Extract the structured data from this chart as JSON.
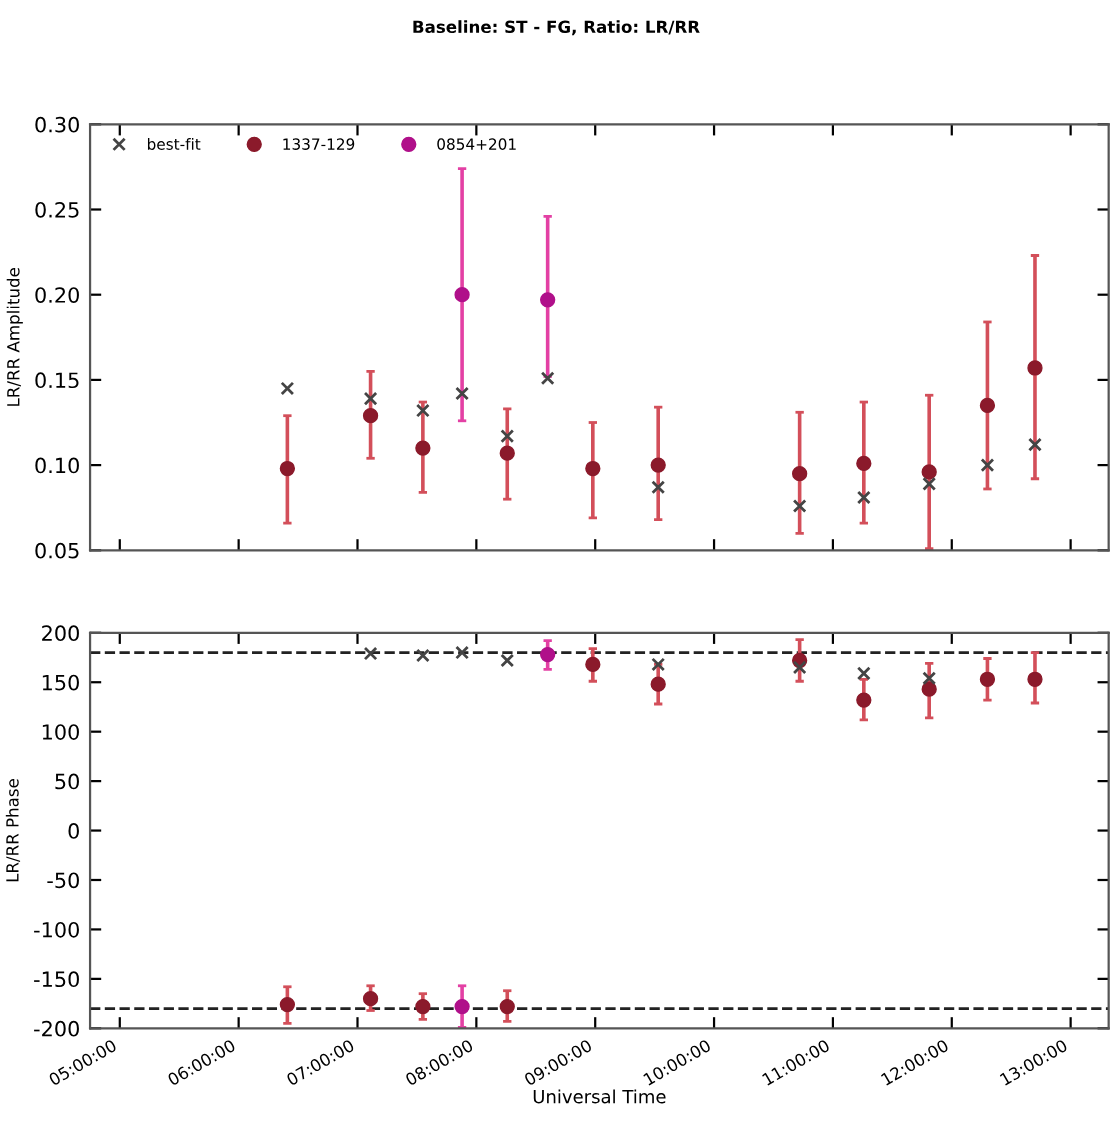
{
  "chart_data": [
    {
      "type": "scatter",
      "title": "Baseline: ST - FG, Ratio: LR/RR",
      "ylabel": "LR/RR Amplitude",
      "xlim": [
        4.75,
        13.32
      ],
      "ylim": [
        0.05,
        0.3
      ],
      "yticks": [
        {
          "value": 0.05,
          "label": "0.05"
        },
        {
          "value": 0.1,
          "label": "0.10"
        },
        {
          "value": 0.15,
          "label": "0.15"
        },
        {
          "value": 0.2,
          "label": "0.20"
        },
        {
          "value": 0.25,
          "label": "0.25"
        },
        {
          "value": 0.3,
          "label": "0.30"
        }
      ],
      "xticks": [
        {
          "value": 5,
          "label": null
        },
        {
          "value": 6,
          "label": null
        },
        {
          "value": 7,
          "label": null
        },
        {
          "value": 8,
          "label": null
        },
        {
          "value": 9,
          "label": null
        },
        {
          "value": 10,
          "label": null
        },
        {
          "value": 11,
          "label": null
        },
        {
          "value": 12,
          "label": null
        },
        {
          "value": 13,
          "label": null
        }
      ],
      "tick_labels": "y",
      "grid": false,
      "legend": "top left",
      "series": [
        {
          "name": "best-fit",
          "color": "#444444",
          "marker": "cross",
          "x": [
            6.41,
            7.11,
            7.55,
            7.88,
            8.26,
            8.6,
            9.53,
            10.72,
            11.26,
            11.81,
            12.3,
            12.7
          ],
          "values": [
            0.145,
            0.139,
            0.132,
            0.142,
            0.117,
            0.151,
            0.087,
            0.076,
            0.081,
            0.089,
            0.1,
            0.112
          ]
        },
        {
          "name": "1337-129",
          "color": "#8b1a2b",
          "marker": "circle",
          "x": [
            6.41,
            7.11,
            7.55,
            8.26,
            8.98,
            9.53,
            10.72,
            11.26,
            11.81,
            12.3,
            12.7
          ],
          "values": [
            0.098,
            0.129,
            0.11,
            0.107,
            0.098,
            0.1,
            0.095,
            0.101,
            0.096,
            0.135,
            0.157
          ],
          "errors": [
            [
              0.066,
              0.129
            ],
            [
              0.104,
              0.155
            ],
            [
              0.084,
              0.137
            ],
            [
              0.08,
              0.133
            ],
            [
              0.069,
              0.125
            ],
            [
              0.068,
              0.134
            ],
            [
              0.06,
              0.131
            ],
            [
              0.066,
              0.137
            ],
            [
              0.051,
              0.141
            ],
            [
              0.086,
              0.184
            ],
            [
              0.092,
              0.223
            ]
          ]
        },
        {
          "name": "0854+201",
          "color": "#b0108a",
          "marker": "circle",
          "x": [
            7.88,
            8.6
          ],
          "values": [
            0.2,
            0.197
          ],
          "errors": [
            [
              0.126,
              0.274
            ],
            [
              0.152,
              0.246
            ]
          ]
        }
      ]
    },
    {
      "type": "scatter",
      "xlabel": "Universal Time",
      "ylabel": "LR/RR Phase",
      "xlim": [
        4.75,
        13.32
      ],
      "ylim": [
        -200,
        200
      ],
      "yticks": [
        -200,
        -150,
        -100,
        -50,
        0,
        50,
        100,
        150,
        200
      ],
      "xticks": [
        {
          "value": 5,
          "label": "05:00:00"
        },
        {
          "value": 6,
          "label": "06:00:00"
        },
        {
          "value": 7,
          "label": "07:00:00"
        },
        {
          "value": 8,
          "label": "08:00:00"
        },
        {
          "value": 9,
          "label": "09:00:00"
        },
        {
          "value": 10,
          "label": "10:00:00"
        },
        {
          "value": 11,
          "label": "11:00:00"
        },
        {
          "value": 12,
          "label": "12:00:00"
        },
        {
          "value": 13,
          "label": "13:00:00"
        }
      ],
      "grid": false,
      "legend": false,
      "ref_lines": [
        {
          "axis": "y",
          "value": 180,
          "color": "#222222",
          "line_style": "dashed"
        },
        {
          "axis": "y",
          "value": -180,
          "color": "#222222",
          "line_style": "dashed"
        }
      ],
      "series": [
        {
          "color": "#444444",
          "marker": "cross",
          "x": [
            7.11,
            7.55,
            7.88,
            8.26,
            9.53,
            10.72,
            11.26,
            11.81
          ],
          "values": [
            179,
            177,
            180,
            172,
            168,
            165,
            159,
            154
          ]
        },
        {
          "color": "#8b1a2b",
          "marker": "circle",
          "x": [
            6.41,
            7.11,
            7.55,
            8.26,
            8.98,
            9.53,
            10.72,
            11.26,
            11.81,
            12.3,
            12.7
          ],
          "values": [
            -176,
            -170,
            -178,
            -178,
            168,
            148,
            172,
            132,
            143,
            153,
            153
          ],
          "errors": [
            [
              -195,
              -158
            ],
            [
              -182,
              -157
            ],
            [
              -191,
              -165
            ],
            [
              -193,
              -162
            ],
            [
              151,
              184
            ],
            [
              128,
              168
            ],
            [
              151,
              193
            ],
            [
              112,
              153
            ],
            [
              114,
              169
            ],
            [
              132,
              174
            ],
            [
              129,
              180
            ]
          ]
        },
        {
          "color": "#b0108a",
          "marker": "circle",
          "x": [
            7.88,
            8.6
          ],
          "values": [
            -178,
            178
          ],
          "errors": [
            [
              -199,
              -157
            ],
            [
              163,
              192
            ]
          ]
        }
      ]
    }
  ]
}
